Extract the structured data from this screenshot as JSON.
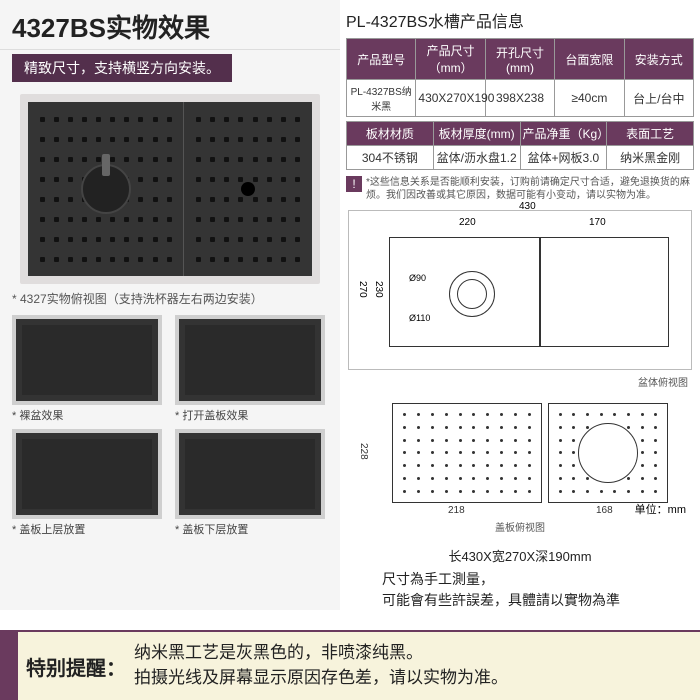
{
  "left": {
    "title": "4327BS实物效果",
    "subtitle": "精致尺寸，支持横竖方向安装。",
    "main_caption": "* 4327实物俯视图（支持洗杯器左右两边安装）",
    "thumbs": [
      {
        "label": "* 裸盆效果"
      },
      {
        "label": "* 打开盖板效果"
      },
      {
        "label": "* 盖板上层放置"
      },
      {
        "label": "* 盖板下层放置"
      }
    ]
  },
  "right": {
    "title": "PL-4327BS水槽产品信息",
    "table1_headers": [
      "产品型号",
      "产品尺寸（mm）",
      "开孔尺寸(mm)",
      "台面宽限",
      "安装方式"
    ],
    "table1_row": [
      "PL-4327BS纳米黑",
      "430X270X190",
      "398X238",
      "≥40cm",
      "台上/台中"
    ],
    "table2_headers": [
      "板材材质",
      "板材厚度(mm)",
      "产品净重（Kg）",
      "表面工艺"
    ],
    "table2_row": [
      "304不锈钢",
      "盆体/沥水盘1.2",
      "盆体+网板3.0",
      "纳米黑金刚"
    ],
    "note_badge": "!",
    "note_text": "*这些信息关系是否能顺利安装，订购前请确定尺寸合适，避免退换货的麻烦。我们因改善或其它原因，数据可能有小变动，请以实物为准。",
    "diagram": {
      "top_total": "430",
      "top_left": "220",
      "top_right": "170",
      "side": "270",
      "side_inner": "230",
      "circ_outer": "Ø110",
      "circ_inner": "Ø90",
      "label": "盆体俯视图"
    },
    "diagram2": {
      "h": "228",
      "w1": "218",
      "w2": "168",
      "unit": "单位：mm",
      "label": "盖板俯视图"
    },
    "summary": "长430X宽270X深190mm",
    "hand_note_l1": "尺寸為手工測量，",
    "hand_note_l2": "可能會有些許誤差，具體請以實物為準"
  },
  "banner": {
    "label": "特别提醒：",
    "line1": "纳米黑工艺是灰黑色的，非喷漆纯黑。",
    "line2": "拍摄光线及屏幕显示原因存色差，请以实物为准。"
  },
  "colors": {
    "brand": "#6a3a5e",
    "banner_bg": "#f7f3dc",
    "sink": "#343434"
  }
}
